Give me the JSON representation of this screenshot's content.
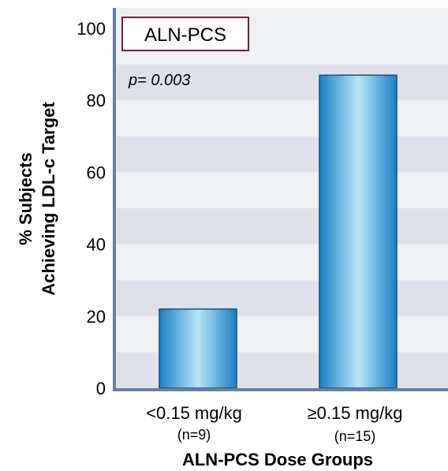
{
  "chart_data": {
    "type": "bar",
    "categories": [
      "<0.15 mg/kg",
      "≥0.15 mg/kg"
    ],
    "category_n": [
      "(n=9)",
      "(n=15)"
    ],
    "values": [
      22,
      87
    ],
    "ylim": [
      0,
      100
    ],
    "yticks": [
      0,
      20,
      40,
      60,
      80,
      100
    ],
    "ylabel_line1": "% Subjects",
    "ylabel_line2": "Achieving LDL-c Target",
    "xlabel": "ALN-PCS Dose Groups",
    "legend_label": "ALN-PCS",
    "annotation": "p= 0.003",
    "colors": {
      "bar_edge": "#1a7fc4",
      "bar_light": "#b7e6f7",
      "band_dark": "#dfe1ea",
      "band_light": "#eef0f4",
      "axis": "#6a7fa6",
      "legend_border": "#7b1c33"
    }
  }
}
